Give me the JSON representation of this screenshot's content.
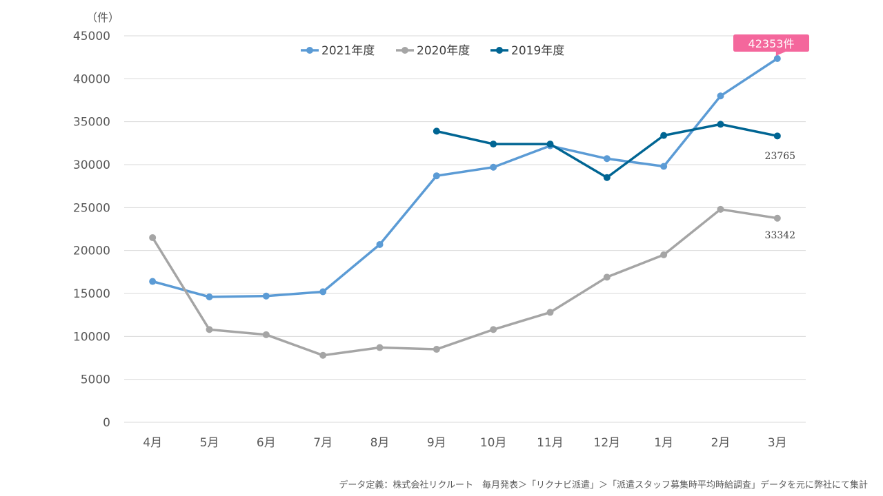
{
  "chart_data": {
    "type": "line",
    "y_unit": "（件）",
    "categories": [
      "4月",
      "5月",
      "6月",
      "7月",
      "8月",
      "9月",
      "10月",
      "11月",
      "12月",
      "1月",
      "2月",
      "3月"
    ],
    "ylim": [
      0,
      45000
    ],
    "yticks": [
      0,
      5000,
      10000,
      15000,
      20000,
      25000,
      30000,
      35000,
      40000,
      45000
    ],
    "grid": true,
    "legend_position": "top-center",
    "series": [
      {
        "name": "2021年度",
        "color": "#5b9bd5",
        "values": [
          16400,
          14600,
          14700,
          15200,
          20700,
          28700,
          29700,
          32200,
          30700,
          29800,
          38000,
          42353
        ]
      },
      {
        "name": "2020年度",
        "color": "#a5a5a5",
        "values": [
          21500,
          10800,
          10200,
          7800,
          8700,
          8500,
          10800,
          12800,
          16900,
          19500,
          24800,
          23765
        ]
      },
      {
        "name": "2019年度",
        "color": "#006593",
        "values": [
          null,
          null,
          null,
          null,
          null,
          33900,
          32400,
          32400,
          28500,
          33400,
          34700,
          33342
        ]
      }
    ],
    "annotations": {
      "callout": "42353件",
      "label_a": "23765",
      "label_b": "33342"
    },
    "callout_color": "#f4679c"
  },
  "source_note": "データ定義：株式会社リクルート　毎月発表＞「リクナビ派遣」＞「派遣スタッフ募集時平均時給調査」データを元に弊社にて集計"
}
